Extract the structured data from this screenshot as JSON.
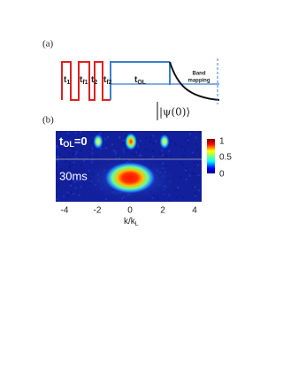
{
  "panel_a": {
    "label": "(a)",
    "pulses": [
      {
        "main": "t",
        "sub": "1"
      },
      {
        "main": "t",
        "sub": "f1"
      },
      {
        "main": "t",
        "sub": "2"
      },
      {
        "main": "t",
        "sub": "f2"
      },
      {
        "main": "t",
        "sub": "OL"
      }
    ],
    "band_mapping": [
      "Band",
      "mapping"
    ],
    "state": "|ψ(0)⟩"
  },
  "panel_b": {
    "label": "(b)",
    "rows": [
      {
        "main": "t",
        "sub": "OL",
        "rest": "=0"
      },
      {
        "main": "30ms"
      }
    ],
    "colorbar_ticks": [
      "1",
      "0.5",
      "0"
    ],
    "x_ticks": [
      "-4",
      "-2",
      "0",
      "2",
      "4"
    ],
    "x_label": {
      "main": "k/k",
      "sub": "L"
    }
  }
}
